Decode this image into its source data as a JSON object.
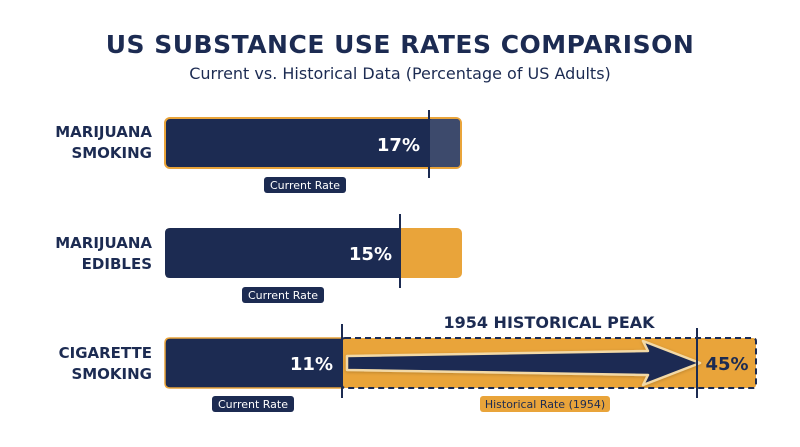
{
  "title": "US SUBSTANCE USE RATES COMPARISON",
  "subtitle": "Current vs. Historical Data (Percentage of US Adults)",
  "colors": {
    "navy": "#1c2b52",
    "gold": "#e9a43a",
    "text": "#1c2b52"
  },
  "chart_data": {
    "type": "bar",
    "categories": [
      "MARIJUANA SMOKING",
      "MARIJUANA EDIBLES",
      "CIGARETTE SMOKING"
    ],
    "series": [
      {
        "name": "Current Rate",
        "values": [
          17,
          15,
          11
        ]
      },
      {
        "name": "Historical Rate (1954)",
        "values": [
          null,
          null,
          45
        ]
      }
    ],
    "data_labels": [
      "17%",
      "15%",
      "11%",
      "45%"
    ],
    "annotations": [
      "1954 HISTORICAL PEAK"
    ],
    "bar_labels": [
      "Current Rate",
      "Current Rate",
      "Current Rate",
      "Historical Rate (1954)"
    ]
  }
}
